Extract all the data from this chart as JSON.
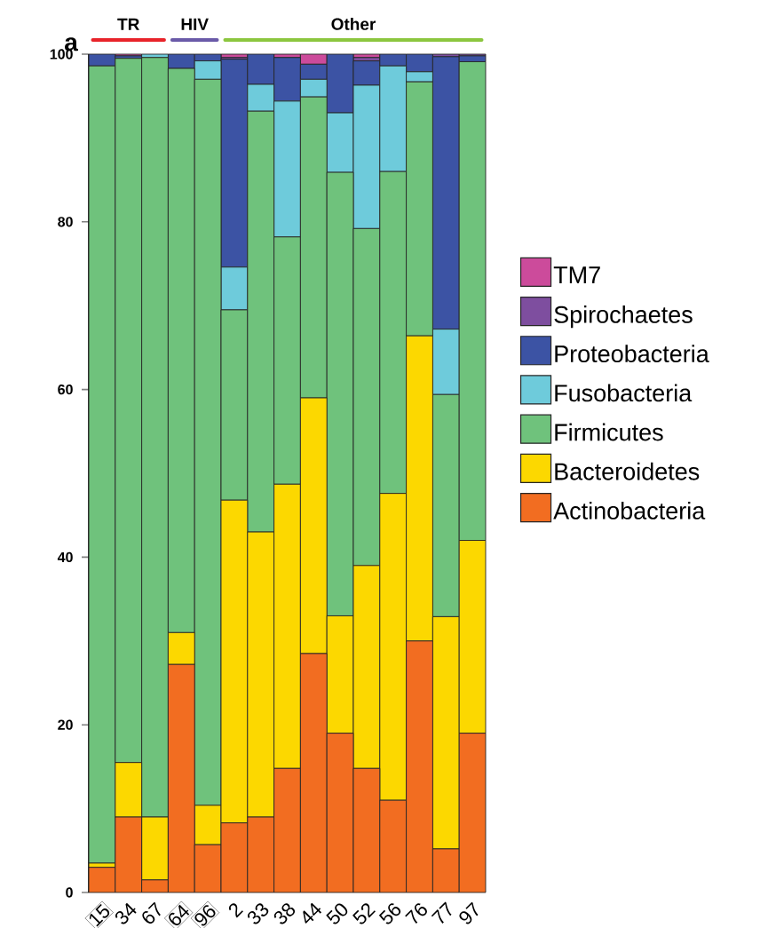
{
  "chart_data": {
    "type": "bar",
    "stacked": true,
    "categories": [
      "15",
      "34",
      "67",
      "64",
      "96",
      "2",
      "33",
      "38",
      "44",
      "50",
      "52",
      "56",
      "76",
      "77",
      "97"
    ],
    "series": [
      {
        "name": "Actinobacteria",
        "color": "#f26d21",
        "values": [
          3.0,
          9.0,
          1.5,
          27.2,
          5.7,
          8.3,
          9.0,
          14.8,
          28.5,
          19.0,
          14.8,
          11.0,
          30.0,
          5.2,
          19.0
        ]
      },
      {
        "name": "Bacteroidetes",
        "color": "#fcd800",
        "values": [
          0.5,
          6.5,
          7.5,
          3.8,
          4.7,
          38.5,
          34.0,
          33.9,
          30.5,
          14.0,
          24.2,
          36.6,
          36.4,
          27.7,
          23.0
        ]
      },
      {
        "name": "Firmicutes",
        "color": "#6fc27c",
        "values": [
          95.1,
          84.0,
          90.6,
          67.3,
          86.6,
          22.7,
          50.2,
          29.5,
          35.9,
          52.9,
          40.2,
          38.4,
          30.3,
          26.5,
          57.1
        ]
      },
      {
        "name": "Fusobacteria",
        "color": "#6ecbdb",
        "values": [
          0,
          0,
          0.4,
          0,
          2.2,
          5.1,
          3.2,
          16.2,
          2.1,
          7.1,
          17.1,
          12.6,
          1.2,
          7.8,
          0
        ]
      },
      {
        "name": "Proteobacteria",
        "color": "#3c53a4",
        "values": [
          1.4,
          0.3,
          0,
          1.7,
          0.8,
          24.8,
          3.6,
          5.2,
          1.8,
          7.0,
          2.9,
          1.4,
          2.1,
          32.5,
          0.7
        ]
      },
      {
        "name": "Spirochaetes",
        "color": "#7e4e9f",
        "values": [
          0,
          0,
          0,
          0,
          0,
          0.2,
          0,
          0,
          0,
          0,
          0.4,
          0,
          0,
          0.3,
          0.2
        ]
      },
      {
        "name": "TM7",
        "color": "#cc4b9b",
        "values": [
          0,
          0.2,
          0,
          0,
          0,
          0.4,
          0,
          0.4,
          1.2,
          0,
          0.4,
          0,
          0,
          0,
          0
        ]
      }
    ],
    "ylim": [
      0,
      100
    ],
    "yticks": [
      0,
      20,
      40,
      60,
      80,
      100
    ],
    "legend": "right",
    "annotations": [
      "a",
      "TR",
      "HIV",
      "Other"
    ]
  }
}
